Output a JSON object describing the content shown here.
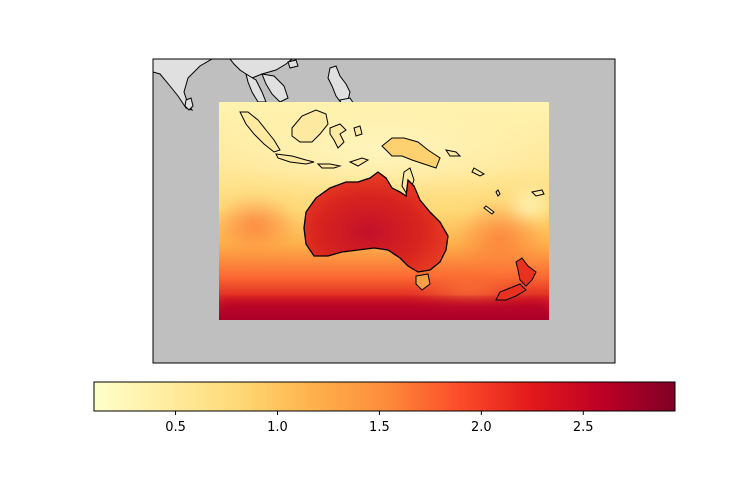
{
  "map": {
    "type": "heatmap",
    "title": "",
    "colormap": "YlOrRd",
    "colors": {
      "ocean_background": "#bfbfbf",
      "land_outside_domain": "#e0e0e0",
      "coastline": "#000000",
      "colormap_stops": [
        "#ffffcc",
        "#ffeda0",
        "#fed976",
        "#feb24c",
        "#fd8d3c",
        "#fc4e2a",
        "#e31a1c",
        "#bd0026",
        "#800026"
      ]
    },
    "regions_shown": [
      "Australia",
      "Indonesia",
      "New Guinea",
      "New Zealand",
      "Southeast Asia",
      "India (partial)"
    ]
  },
  "colorbar": {
    "orientation": "horizontal",
    "vmin": 0.1,
    "vmax": 2.95,
    "ticks": [
      {
        "value": 0.5,
        "label": "0.5"
      },
      {
        "value": 1.0,
        "label": "1.0"
      },
      {
        "value": 1.5,
        "label": "1.5"
      },
      {
        "value": 2.0,
        "label": "2.0"
      },
      {
        "value": 2.5,
        "label": "2.5"
      }
    ]
  }
}
